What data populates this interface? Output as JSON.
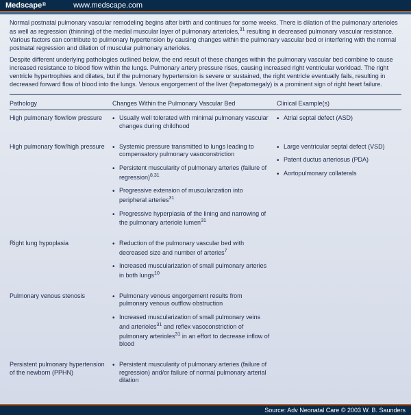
{
  "header": {
    "brand": "Medscape",
    "reg": "®",
    "url": "www.medscape.com"
  },
  "intro": {
    "p1a": "Normal postnatal pulmonary vascular remodeling begins after birth and continues for some weeks. There is dilation of the pulmonary arterioles as well as regression (thinning) of the medial muscular layer of pulmonary arterioles,",
    "p1sup": "31",
    "p1b": " resulting in decreased pulmonary vascular resistance. Various factors can contribute to pulmonary hypertension by causing changes within the pulmonary vascular bed or interfering with the normal postnatal regression and dilation of muscular pulmonary arterioles.",
    "p2": "Despite different underlying pathologies outlined below, the end result of these changes within the pulmonary vascular bed combine to cause increased resistance to blood flow within the lungs. Pulmonary artery pressure rises, causing increased right ventricular workload. The right ventricle hypertrophies and dilates, but if the pulmonary hypertension is severe or sustained, the right ventricle eventually fails, resulting in decreased forward flow of blood into the lungs. Venous engorgement of the liver (hepatomegaly) is a prominent sign of right heart failure."
  },
  "columns": {
    "c1": "Pathology",
    "c2": "Changes Within the Pulmonary Vascular Bed",
    "c3": "Clinical Example(s)"
  },
  "rows": [
    {
      "pathology": "High pulmonary flow/low pressure",
      "changes": [
        {
          "t": "Usually well tolerated with minimal pulmonary vascular changes during childhood"
        }
      ],
      "examples": [
        {
          "t": "Atrial septal defect (ASD)"
        }
      ]
    },
    {
      "pathology": "High pulmonary flow/high pressure",
      "changes": [
        {
          "t": "Systemic pressure transmitted to lungs leading to compensatory pulmonary vasoconstriction"
        },
        {
          "t": "Persistent muscularity of pulmonary arteries (failure of regression)",
          "sup": "8,31"
        },
        {
          "t": "Progressive extension of muscularization into peripheral arteries",
          "sup": "31"
        },
        {
          "t": "Progressive hyperplasia of the lining and narrowing of the pulmonary arteriole lumen",
          "sup": "31"
        }
      ],
      "examples": [
        {
          "t": "Large ventricular septal defect (VSD)"
        },
        {
          "t": "Patent ductus arteriosus (PDA)"
        },
        {
          "t": "Aortopulmonary collaterals"
        }
      ]
    },
    {
      "pathology": "Right lung hypoplasia",
      "changes": [
        {
          "t": "Reduction of the pulmonary vascular bed with decreased size and number of arteries",
          "sup": "7"
        },
        {
          "t": "Increased muscularization of small pulmonary arteries in both lungs",
          "sup": "10"
        }
      ],
      "examples": []
    },
    {
      "pathology": "Pulmonary venous stenosis",
      "changes": [
        {
          "t": "Pulmonary venous engorgement results from pulmonary venous outflow obstruction"
        },
        {
          "t2": [
            "Increased muscularization of small pulmonary veins and arterioles",
            "31",
            " and reflex vasoconstriction of pulmonary arterioles",
            "31",
            " in an effort to decrease inflow of blood"
          ]
        }
      ],
      "examples": []
    },
    {
      "pathology": "Persistent pulmonary hypertension of the newborn (PPHN)",
      "changes": [
        {
          "t": "Persistent muscularity of pulmonary arteries (failure of regression) and/or failure of normal pulmonary arterial dilation"
        }
      ],
      "examples": []
    }
  ],
  "footer": "Source: Adv Neonatal Care © 2003 W. B. Saunders"
}
